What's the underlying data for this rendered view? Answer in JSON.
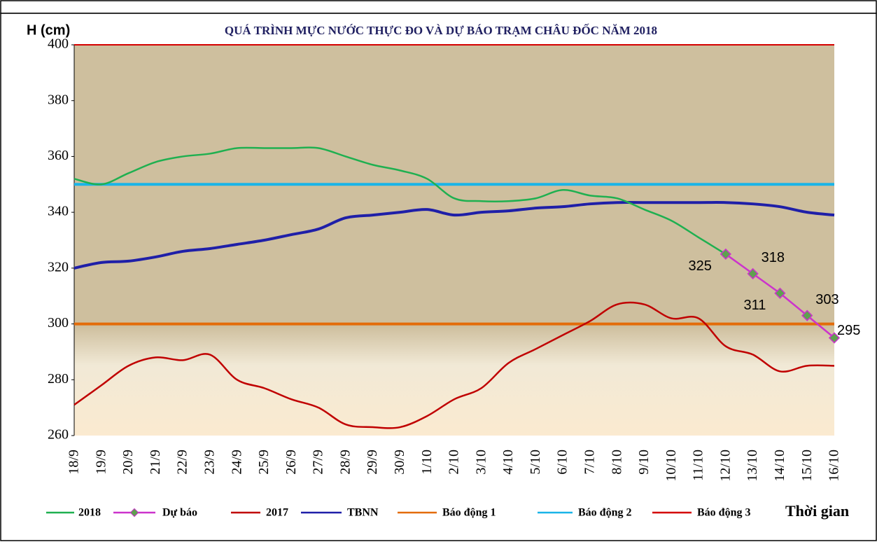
{
  "chart_data": {
    "type": "line",
    "title": "QUÁ TRÌNH MỰC NƯỚC THỰC ĐO VÀ DỰ BÁO TRẠM CHÂU ĐỐC NĂM 2018",
    "y_label": "H (cm)",
    "x_label": "Thời gian",
    "categories": [
      "18/9",
      "19/9",
      "20/9",
      "21/9",
      "22/9",
      "23/9",
      "24/9",
      "25/9",
      "26/9",
      "27/9",
      "28/9",
      "29/9",
      "30/9",
      "1/10",
      "2/10",
      "3/10",
      "4/10",
      "5/10",
      "6/10",
      "7/10",
      "8/10",
      "9/10",
      "10/10",
      "11/10",
      "12/10",
      "13/10",
      "14/10",
      "15/10",
      "16/10"
    ],
    "ylim": [
      260,
      400
    ],
    "yticks": [
      260,
      280,
      300,
      320,
      340,
      360,
      380,
      400
    ],
    "series": [
      {
        "name": "2018",
        "color": "#1fb050",
        "values": [
          352,
          350,
          354,
          358,
          360,
          361,
          363,
          363,
          363,
          363,
          360,
          357,
          355,
          352,
          345,
          344,
          344,
          345,
          348,
          346,
          345,
          341,
          337,
          331,
          325,
          null,
          null,
          null,
          null
        ]
      },
      {
        "name": "Dự báo",
        "color": "#cc33cc",
        "marker_color": "#5fa050",
        "markers": true,
        "data_labels": true,
        "values": [
          null,
          null,
          null,
          null,
          null,
          null,
          null,
          null,
          null,
          null,
          null,
          null,
          null,
          null,
          null,
          null,
          null,
          null,
          null,
          null,
          null,
          null,
          null,
          null,
          325,
          318,
          311,
          303,
          295
        ]
      },
      {
        "name": "2017",
        "color": "#c00000",
        "values": [
          271,
          278,
          285,
          288,
          287,
          289,
          280,
          277,
          273,
          270,
          264,
          263,
          263,
          267,
          273,
          277,
          286,
          291,
          296,
          301,
          307,
          307,
          302,
          302,
          292,
          289,
          283,
          285,
          285
        ]
      },
      {
        "name": "TBNN",
        "color": "#1f1fa8",
        "width": 4,
        "values": [
          320,
          322,
          322.5,
          324,
          326,
          327,
          328.5,
          330,
          332,
          334,
          338,
          339,
          340,
          341,
          339,
          340,
          340.5,
          341.5,
          342,
          343,
          343.5,
          343.5,
          343.5,
          343.5,
          343.5,
          343,
          342,
          340,
          339
        ]
      },
      {
        "name": "Báo động 1",
        "color": "#e36c0a",
        "width": 4,
        "value": 300
      },
      {
        "name": "Báo động 2",
        "color": "#19b4e8",
        "width": 4,
        "value": 350
      },
      {
        "name": "Báo động 3",
        "color": "#d40000",
        "width": 2,
        "value": 400
      }
    ]
  }
}
